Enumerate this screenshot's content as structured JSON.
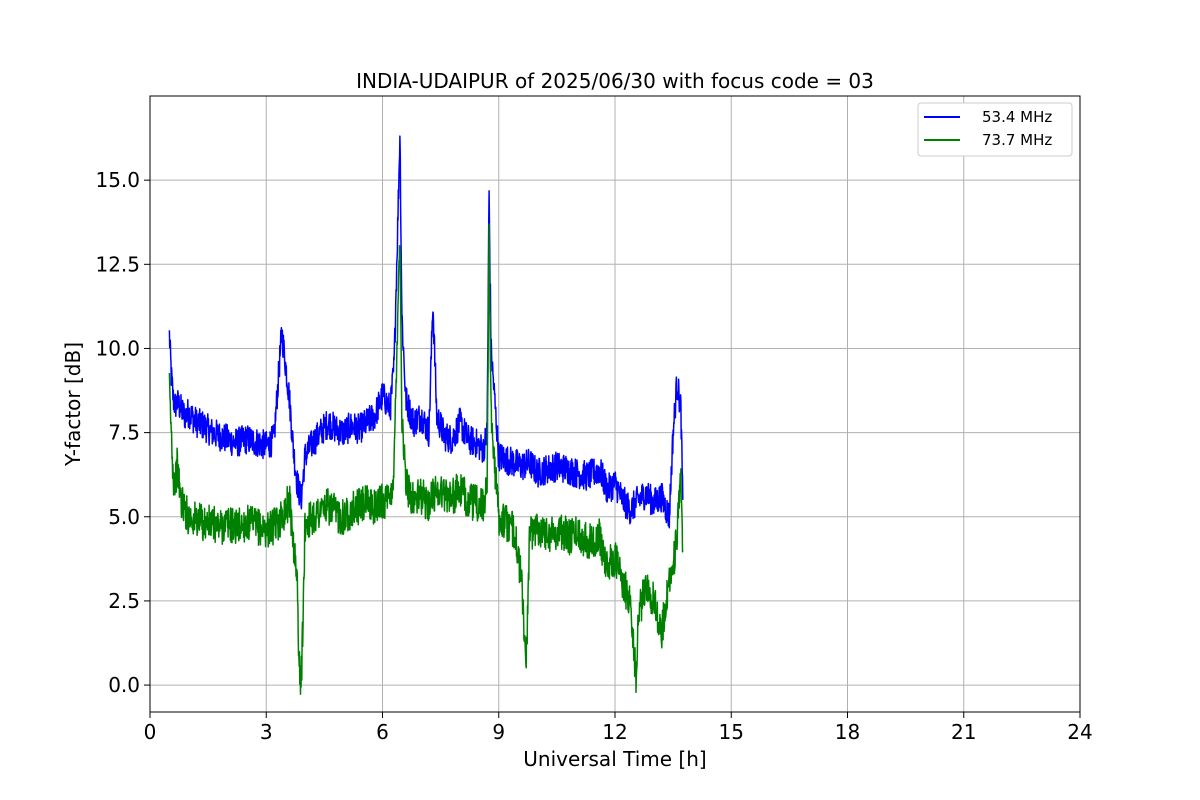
{
  "chart_data": {
    "type": "line",
    "title": "INDIA-UDAIPUR of 2025/06/30 with focus code = 03",
    "xlabel": "Universal Time [h]",
    "ylabel": "Y-factor [dB]",
    "xlim": [
      0,
      24
    ],
    "ylim": [
      -0.8,
      17.5
    ],
    "xticks": [
      0,
      3,
      6,
      9,
      12,
      15,
      18,
      21,
      24
    ],
    "yticks": [
      0.0,
      2.5,
      5.0,
      7.5,
      10.0,
      12.5,
      15.0
    ],
    "ytick_labels": [
      "0.0",
      "2.5",
      "5.0",
      "7.5",
      "10.0",
      "12.5",
      "15.0"
    ],
    "grid": true,
    "legend": "top-right",
    "series": [
      {
        "name": "53.4 MHz",
        "color": "#0000ff",
        "x": [
          0.5,
          0.55,
          0.6,
          0.65,
          0.7,
          0.8,
          0.9,
          1.0,
          1.2,
          1.4,
          1.6,
          1.8,
          2.0,
          2.2,
          2.5,
          2.8,
          3.0,
          3.2,
          3.4,
          3.5,
          3.6,
          3.7,
          3.8,
          3.9,
          4.0,
          4.2,
          4.4,
          4.6,
          4.8,
          5.0,
          5.2,
          5.4,
          5.6,
          5.8,
          6.0,
          6.2,
          6.3,
          6.4,
          6.45,
          6.5,
          6.6,
          6.8,
          7.0,
          7.2,
          7.3,
          7.4,
          7.6,
          7.8,
          8.0,
          8.2,
          8.4,
          8.6,
          8.7,
          8.75,
          8.8,
          9.0,
          9.2,
          9.4,
          9.6,
          9.8,
          10.0,
          10.2,
          10.5,
          10.8,
          11.0,
          11.3,
          11.6,
          11.8,
          12.0,
          12.2,
          12.4,
          12.6,
          12.8,
          13.0,
          13.2,
          13.4,
          13.5,
          13.6,
          13.7,
          13.75
        ],
        "y": [
          10.4,
          9.2,
          8.5,
          8.3,
          8.4,
          8.2,
          8.0,
          8.1,
          7.8,
          7.7,
          7.5,
          7.4,
          7.3,
          7.2,
          7.3,
          7.2,
          7.1,
          7.3,
          10.5,
          9.5,
          8.5,
          7.0,
          6.0,
          5.5,
          6.8,
          7.2,
          7.5,
          7.8,
          7.6,
          7.5,
          7.7,
          7.6,
          7.8,
          8.0,
          8.6,
          8.2,
          9.5,
          14.0,
          16.4,
          11.0,
          8.5,
          7.8,
          8.0,
          7.5,
          11.4,
          8.0,
          7.4,
          7.3,
          7.8,
          7.3,
          7.2,
          7.0,
          7.5,
          14.6,
          10.0,
          6.8,
          6.7,
          6.6,
          6.5,
          6.6,
          6.3,
          6.4,
          6.5,
          6.4,
          6.3,
          6.2,
          6.4,
          5.8,
          6.0,
          5.5,
          5.2,
          5.5,
          5.7,
          5.4,
          5.6,
          5.0,
          7.5,
          9.0,
          8.2,
          5.5
        ]
      },
      {
        "name": "73.7 MHz",
        "color": "#008000",
        "x": [
          0.5,
          0.55,
          0.6,
          0.65,
          0.7,
          0.8,
          0.9,
          1.0,
          1.2,
          1.4,
          1.6,
          1.8,
          2.0,
          2.2,
          2.5,
          2.8,
          3.0,
          3.2,
          3.4,
          3.6,
          3.8,
          3.85,
          3.9,
          3.95,
          4.0,
          4.2,
          4.4,
          4.6,
          4.8,
          5.0,
          5.2,
          5.4,
          5.6,
          5.8,
          6.0,
          6.2,
          6.3,
          6.4,
          6.45,
          6.5,
          6.6,
          6.8,
          7.0,
          7.2,
          7.4,
          7.6,
          7.8,
          8.0,
          8.2,
          8.4,
          8.6,
          8.7,
          8.75,
          8.8,
          9.0,
          9.2,
          9.4,
          9.6,
          9.7,
          9.8,
          10.0,
          10.3,
          10.6,
          10.8,
          11.0,
          11.3,
          11.6,
          11.8,
          12.0,
          12.2,
          12.4,
          12.55,
          12.6,
          12.8,
          13.0,
          13.2,
          13.4,
          13.5,
          13.6,
          13.7,
          13.75
        ],
        "y": [
          8.8,
          7.5,
          6.2,
          6.0,
          6.5,
          5.5,
          5.2,
          5.0,
          4.9,
          4.8,
          4.8,
          4.7,
          4.8,
          4.7,
          4.8,
          4.7,
          4.6,
          4.7,
          5.0,
          5.5,
          3.0,
          0.6,
          0.0,
          2.0,
          4.8,
          5.0,
          5.2,
          5.3,
          5.1,
          5.0,
          5.2,
          5.3,
          5.4,
          5.3,
          5.5,
          5.4,
          6.5,
          11.5,
          13.4,
          8.0,
          6.0,
          5.5,
          5.6,
          5.4,
          5.8,
          5.7,
          5.6,
          5.8,
          5.5,
          5.4,
          5.3,
          6.0,
          13.5,
          8.0,
          5.0,
          4.8,
          4.6,
          3.0,
          0.4,
          4.5,
          4.7,
          4.5,
          4.6,
          4.4,
          4.5,
          4.3,
          4.4,
          3.5,
          3.8,
          3.0,
          2.5,
          0.1,
          2.0,
          3.0,
          2.5,
          1.5,
          3.2,
          3.5,
          4.5,
          6.0,
          4.0
        ]
      }
    ]
  }
}
